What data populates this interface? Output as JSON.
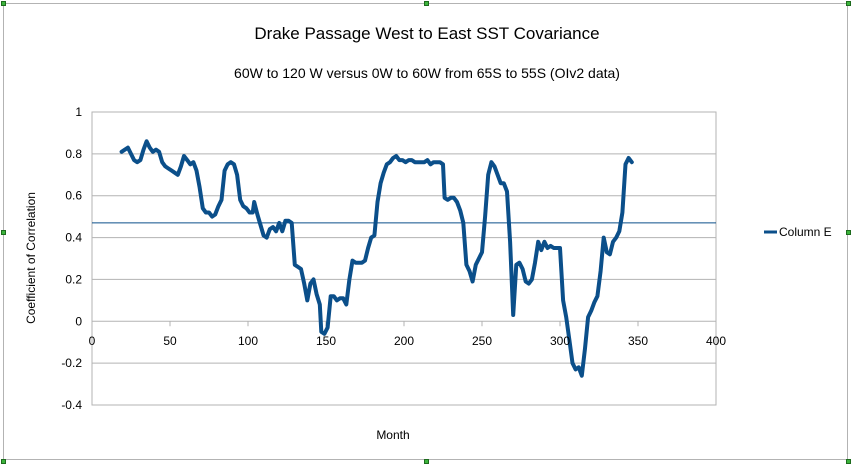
{
  "chart_data": {
    "type": "line",
    "title": "Drake Passage West to East SST Covariance",
    "subtitle": "60W to 120 W versus 0W to 60W from 65S to 55S (OIv2 data)",
    "xlabel": "Month",
    "ylabel": "Coefficient of Correlation",
    "xlim": [
      0,
      400
    ],
    "ylim": [
      -0.4,
      1
    ],
    "x_ticks": [
      "0",
      "50",
      "100",
      "150",
      "200",
      "250",
      "300",
      "350",
      "400"
    ],
    "y_ticks": [
      "-0.4",
      "-0.2",
      "0",
      "0.2",
      "0.4",
      "0.6",
      "0.8",
      "1"
    ],
    "grid": "horizontal",
    "legend": "right",
    "reference_line": 0.47,
    "series": [
      {
        "name": "Column E",
        "color": "#0b4f8a",
        "points": [
          [
            19,
            0.81
          ],
          [
            21,
            0.82
          ],
          [
            23,
            0.83
          ],
          [
            25,
            0.8
          ],
          [
            27,
            0.77
          ],
          [
            29,
            0.76
          ],
          [
            31,
            0.77
          ],
          [
            33,
            0.82
          ],
          [
            35,
            0.86
          ],
          [
            37,
            0.83
          ],
          [
            39,
            0.81
          ],
          [
            41,
            0.82
          ],
          [
            43,
            0.81
          ],
          [
            45,
            0.76
          ],
          [
            47,
            0.74
          ],
          [
            49,
            0.73
          ],
          [
            51,
            0.72
          ],
          [
            53,
            0.71
          ],
          [
            55,
            0.7
          ],
          [
            57,
            0.74
          ],
          [
            59,
            0.79
          ],
          [
            61,
            0.77
          ],
          [
            63,
            0.75
          ],
          [
            65,
            0.76
          ],
          [
            67,
            0.72
          ],
          [
            69,
            0.64
          ],
          [
            71,
            0.54
          ],
          [
            73,
            0.52
          ],
          [
            75,
            0.52
          ],
          [
            77,
            0.5
          ],
          [
            79,
            0.51
          ],
          [
            81,
            0.55
          ],
          [
            83,
            0.58
          ],
          [
            85,
            0.72
          ],
          [
            87,
            0.75
          ],
          [
            89,
            0.76
          ],
          [
            91,
            0.75
          ],
          [
            93,
            0.7
          ],
          [
            95,
            0.58
          ],
          [
            97,
            0.55
          ],
          [
            99,
            0.54
          ],
          [
            101,
            0.52
          ],
          [
            103,
            0.52
          ],
          [
            104,
            0.57
          ],
          [
            106,
            0.51
          ],
          [
            108,
            0.46
          ],
          [
            110,
            0.41
          ],
          [
            112,
            0.4
          ],
          [
            114,
            0.44
          ],
          [
            116,
            0.45
          ],
          [
            118,
            0.43
          ],
          [
            120,
            0.47
          ],
          [
            122,
            0.43
          ],
          [
            124,
            0.48
          ],
          [
            126,
            0.48
          ],
          [
            128,
            0.47
          ],
          [
            130,
            0.27
          ],
          [
            132,
            0.26
          ],
          [
            134,
            0.25
          ],
          [
            136,
            0.18
          ],
          [
            138,
            0.1
          ],
          [
            140,
            0.18
          ],
          [
            142,
            0.2
          ],
          [
            144,
            0.13
          ],
          [
            146,
            0.08
          ],
          [
            147,
            -0.05
          ],
          [
            149,
            -0.06
          ],
          [
            151,
            -0.03
          ],
          [
            153,
            0.12
          ],
          [
            155,
            0.12
          ],
          [
            157,
            0.1
          ],
          [
            159,
            0.11
          ],
          [
            161,
            0.11
          ],
          [
            163,
            0.08
          ],
          [
            165,
            0.2
          ],
          [
            167,
            0.29
          ],
          [
            169,
            0.28
          ],
          [
            171,
            0.28
          ],
          [
            173,
            0.28
          ],
          [
            175,
            0.29
          ],
          [
            177,
            0.35
          ],
          [
            179,
            0.4
          ],
          [
            181,
            0.41
          ],
          [
            183,
            0.57
          ],
          [
            185,
            0.66
          ],
          [
            187,
            0.71
          ],
          [
            189,
            0.75
          ],
          [
            191,
            0.76
          ],
          [
            193,
            0.78
          ],
          [
            195,
            0.79
          ],
          [
            197,
            0.77
          ],
          [
            199,
            0.77
          ],
          [
            201,
            0.76
          ],
          [
            203,
            0.77
          ],
          [
            205,
            0.77
          ],
          [
            207,
            0.76
          ],
          [
            209,
            0.76
          ],
          [
            211,
            0.76
          ],
          [
            213,
            0.76
          ],
          [
            215,
            0.77
          ],
          [
            217,
            0.75
          ],
          [
            219,
            0.76
          ],
          [
            221,
            0.76
          ],
          [
            223,
            0.76
          ],
          [
            225,
            0.75
          ],
          [
            226,
            0.59
          ],
          [
            228,
            0.58
          ],
          [
            230,
            0.59
          ],
          [
            232,
            0.59
          ],
          [
            234,
            0.57
          ],
          [
            236,
            0.53
          ],
          [
            238,
            0.47
          ],
          [
            240,
            0.27
          ],
          [
            242,
            0.24
          ],
          [
            244,
            0.19
          ],
          [
            246,
            0.27
          ],
          [
            248,
            0.3
          ],
          [
            250,
            0.33
          ],
          [
            252,
            0.5
          ],
          [
            254,
            0.7
          ],
          [
            256,
            0.76
          ],
          [
            258,
            0.74
          ],
          [
            260,
            0.7
          ],
          [
            262,
            0.66
          ],
          [
            264,
            0.66
          ],
          [
            266,
            0.62
          ],
          [
            268,
            0.38
          ],
          [
            270,
            0.03
          ],
          [
            272,
            0.27
          ],
          [
            274,
            0.28
          ],
          [
            276,
            0.25
          ],
          [
            278,
            0.19
          ],
          [
            280,
            0.18
          ],
          [
            282,
            0.2
          ],
          [
            284,
            0.28
          ],
          [
            286,
            0.38
          ],
          [
            288,
            0.34
          ],
          [
            290,
            0.38
          ],
          [
            292,
            0.35
          ],
          [
            294,
            0.36
          ],
          [
            296,
            0.35
          ],
          [
            298,
            0.35
          ],
          [
            300,
            0.35
          ],
          [
            302,
            0.1
          ],
          [
            304,
            0.02
          ],
          [
            306,
            -0.09
          ],
          [
            308,
            -0.2
          ],
          [
            310,
            -0.23
          ],
          [
            312,
            -0.22
          ],
          [
            314,
            -0.26
          ],
          [
            316,
            -0.13
          ],
          [
            318,
            0.02
          ],
          [
            320,
            0.05
          ],
          [
            322,
            0.09
          ],
          [
            324,
            0.12
          ],
          [
            326,
            0.24
          ],
          [
            328,
            0.4
          ],
          [
            330,
            0.33
          ],
          [
            332,
            0.32
          ],
          [
            334,
            0.38
          ],
          [
            336,
            0.4
          ],
          [
            338,
            0.43
          ],
          [
            340,
            0.52
          ],
          [
            342,
            0.75
          ],
          [
            344,
            0.78
          ],
          [
            346,
            0.76
          ]
        ]
      }
    ]
  }
}
